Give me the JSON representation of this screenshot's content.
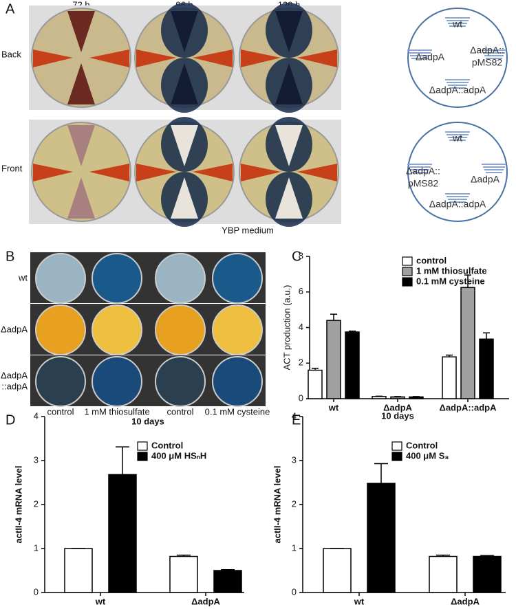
{
  "panel_a": {
    "label": "A",
    "timepoints": [
      "72 h",
      "96 h",
      "120 h"
    ],
    "rows": [
      "Back",
      "Front"
    ],
    "caption": "YBP medium",
    "diagram": {
      "wt": "wt",
      "adpA": "ΔadpA",
      "pms_1": "ΔadpA::",
      "pms_2": "pMS82",
      "comp": "ΔadpA::adpA"
    }
  },
  "panel_b": {
    "label": "B",
    "rows": [
      [
        "wt"
      ],
      [
        "ΔadpA"
      ],
      [
        "ΔadpA",
        "::adpA"
      ]
    ],
    "columns": [
      "control",
      "1 mM thiosulfate",
      "control",
      "0.1 mM cysteine"
    ],
    "duration": "10 days"
  },
  "chart_data": [
    {
      "type": "bar",
      "label": "C",
      "ylabel": "ACT production (a.u.)",
      "xlabel": "10 days",
      "categories": [
        "wt",
        "ΔadpA",
        "ΔadpA::adpA"
      ],
      "ylim": [
        0,
        8
      ],
      "yticks": [
        0,
        2,
        4,
        6,
        8
      ],
      "series": [
        {
          "name": "control",
          "color": "#ffffff",
          "values": [
            1.6,
            0.12,
            2.35
          ],
          "errors": [
            0.1,
            0.02,
            0.1
          ]
        },
        {
          "name": "1 mM thiosulfate",
          "color": "#a0a0a0",
          "values": [
            4.4,
            0.1,
            6.25
          ],
          "errors": [
            0.35,
            0.02,
            0.7
          ]
        },
        {
          "name": "0.1 mM cysteine",
          "color": "#000000",
          "values": [
            3.75,
            0.1,
            3.35
          ],
          "errors": [
            0.05,
            0.02,
            0.35
          ]
        }
      ]
    },
    {
      "type": "bar",
      "label": "D",
      "ylabel": "actII-4 mRNA level",
      "categories": [
        "wt",
        "ΔadpA"
      ],
      "ylim": [
        0,
        4
      ],
      "yticks": [
        0,
        1,
        2,
        3,
        4
      ],
      "series": [
        {
          "name": "Control",
          "color": "#ffffff",
          "values": [
            1.0,
            0.82
          ],
          "errors": [
            0,
            0.03
          ]
        },
        {
          "name": "400 μM HSₙH",
          "color": "#000000",
          "values": [
            2.68,
            0.5
          ],
          "errors": [
            0.63,
            0.02
          ]
        }
      ]
    },
    {
      "type": "bar",
      "label": "E",
      "ylabel": "actII-4 mRNA level",
      "categories": [
        "wt",
        "ΔadpA"
      ],
      "ylim": [
        0,
        4
      ],
      "yticks": [
        0,
        1,
        2,
        3,
        4
      ],
      "series": [
        {
          "name": "Control",
          "color": "#ffffff",
          "values": [
            1.0,
            0.82
          ],
          "errors": [
            0,
            0.03
          ]
        },
        {
          "name": "400 μM S₈",
          "color": "#000000",
          "values": [
            2.48,
            0.82
          ],
          "errors": [
            0.45,
            0.02
          ]
        }
      ]
    }
  ]
}
